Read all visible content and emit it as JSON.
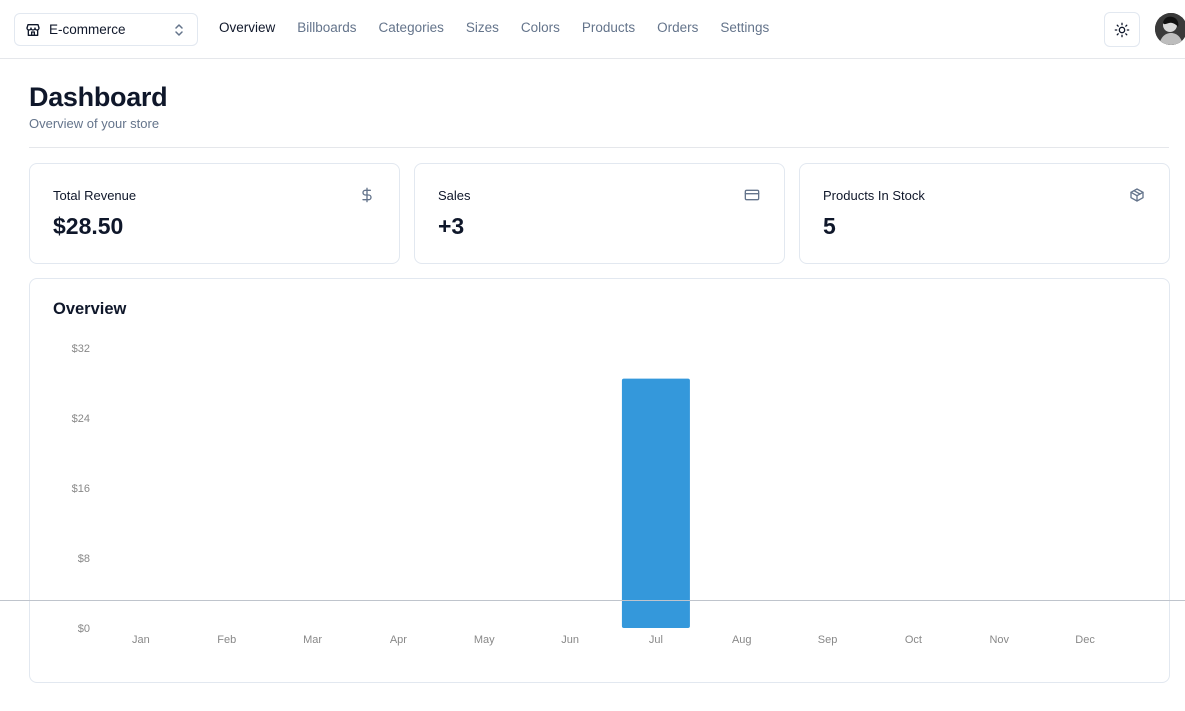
{
  "header": {
    "store_name": "E-commerce",
    "nav": [
      "Overview",
      "Billboards",
      "Categories",
      "Sizes",
      "Colors",
      "Products",
      "Orders",
      "Settings"
    ]
  },
  "page": {
    "title": "Dashboard",
    "subtitle": "Overview of your store"
  },
  "stats": [
    {
      "label": "Total Revenue",
      "value": "$28.50",
      "icon": "dollar-icon"
    },
    {
      "label": "Sales",
      "value": "+3",
      "icon": "credit-card-icon"
    },
    {
      "label": "Products In Stock",
      "value": "5",
      "icon": "package-icon"
    }
  ],
  "colors": {
    "bar": "#3498db",
    "muted": "#64748b"
  },
  "chart_data": {
    "type": "bar",
    "title": "Overview",
    "categories": [
      "Jan",
      "Feb",
      "Mar",
      "Apr",
      "May",
      "Jun",
      "Jul",
      "Aug",
      "Sep",
      "Oct",
      "Nov",
      "Dec"
    ],
    "values": [
      0,
      0,
      0,
      0,
      0,
      0,
      28.5,
      0,
      0,
      0,
      0,
      0
    ],
    "yticks": [
      "$0",
      "$8",
      "$16",
      "$24",
      "$32"
    ],
    "ylim": [
      0,
      32
    ],
    "grid": false,
    "legend": "none"
  }
}
